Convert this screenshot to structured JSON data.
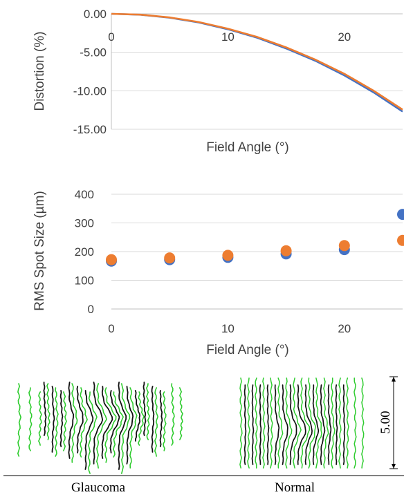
{
  "chart_data": [
    {
      "type": "line",
      "xlabel": "Field Angle (°)",
      "ylabel": "Distortion (%)",
      "xlim": [
        0,
        25
      ],
      "ylim": [
        -15,
        0
      ],
      "xticks": [
        "0",
        "10",
        "20"
      ],
      "xtick_values": [
        0,
        10,
        20
      ],
      "yticks": [
        "0.00",
        "-5.00",
        "-10.00",
        "-15.00"
      ],
      "ytick_values": [
        0,
        -5,
        -10,
        -15
      ],
      "grid": "horizontal",
      "series": [
        {
          "color": "#4472C4",
          "x": [
            0,
            2.5,
            5,
            7.5,
            10,
            12.5,
            15,
            17.5,
            20,
            22.5,
            25
          ],
          "y": [
            0,
            -0.12,
            -0.5,
            -1.12,
            -2.0,
            -3.1,
            -4.5,
            -6.1,
            -8.0,
            -10.2,
            -12.7
          ]
        },
        {
          "color": "#ED7D31",
          "x": [
            0,
            2.5,
            5,
            7.5,
            10,
            12.5,
            15,
            17.5,
            20,
            22.5,
            25
          ],
          "y": [
            0,
            -0.11,
            -0.47,
            -1.07,
            -1.93,
            -3.0,
            -4.36,
            -5.95,
            -7.8,
            -9.98,
            -12.45
          ]
        }
      ]
    },
    {
      "type": "scatter",
      "xlabel": "Field Angle (°)",
      "ylabel": "RMS Spot Size (µm)",
      "xlim": [
        0,
        25
      ],
      "ylim": [
        0,
        400
      ],
      "xticks": [
        "0",
        "10",
        "20"
      ],
      "xtick_values": [
        0,
        10,
        20
      ],
      "yticks": [
        "400",
        "300",
        "200",
        "100",
        "0"
      ],
      "ytick_values": [
        400,
        300,
        200,
        100,
        0
      ],
      "grid": "horizontal",
      "series": [
        {
          "color": "#4472C4",
          "x": [
            0,
            5,
            10,
            15,
            20,
            25
          ],
          "y": [
            167,
            172,
            180,
            192,
            207,
            330
          ]
        },
        {
          "color": "#ED7D31",
          "x": [
            0,
            5,
            10,
            15,
            20,
            25
          ],
          "y": [
            172,
            178,
            187,
            203,
            221,
            239
          ]
        }
      ]
    }
  ],
  "images": {
    "left_caption": "Glaucoma",
    "right_caption": "Normal",
    "scale_label": "5.00",
    "line_colors": {
      "primary": "#111111",
      "secondary": "#2ecc2e"
    }
  }
}
